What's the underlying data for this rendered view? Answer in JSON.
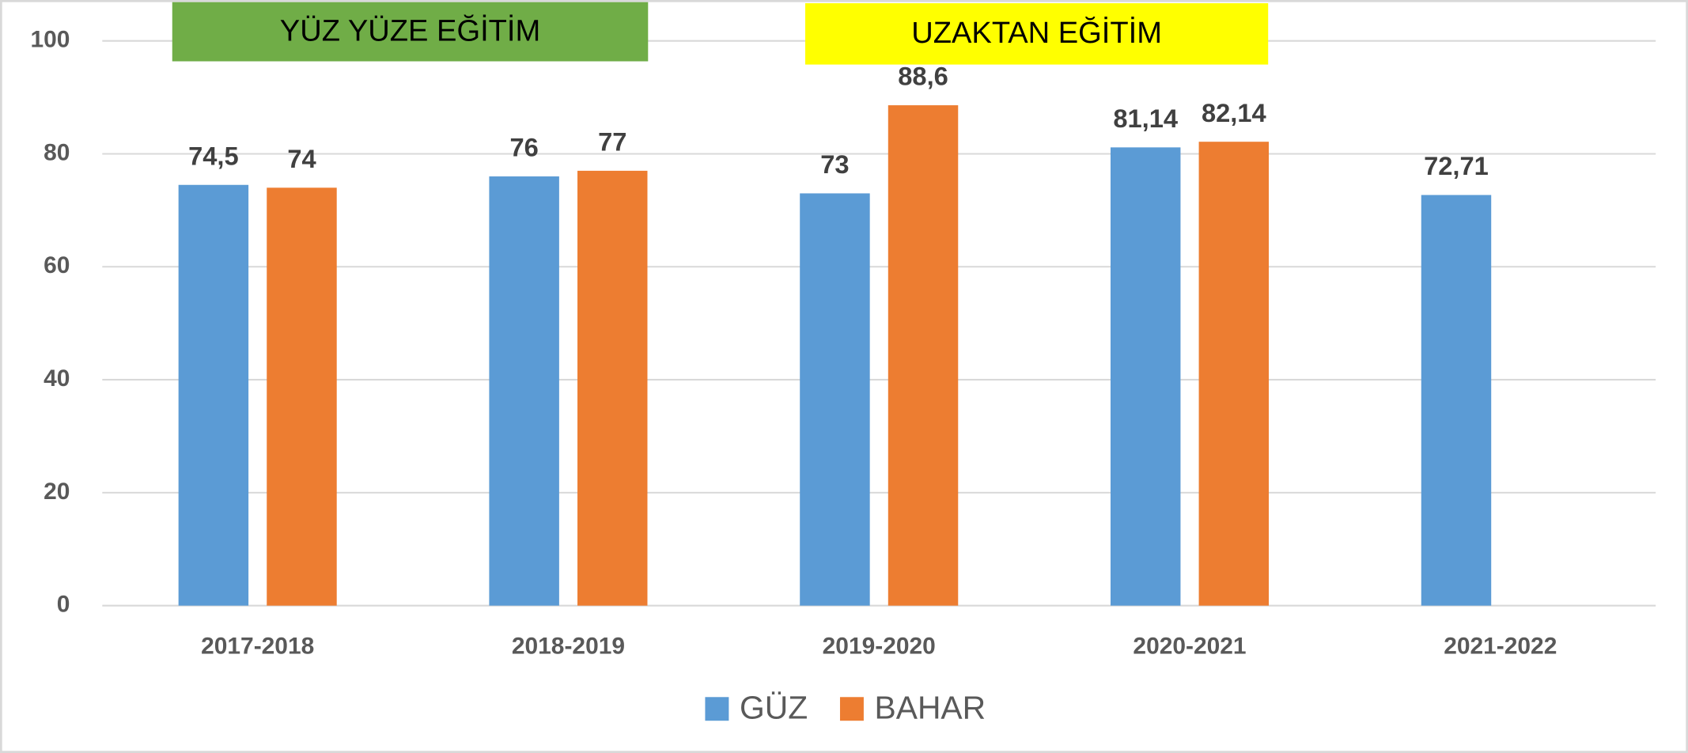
{
  "chart_data": {
    "type": "bar",
    "categories": [
      "2017-2018",
      "2018-2019",
      "2019-2020",
      "2020-2021",
      "2021-2022"
    ],
    "series": [
      {
        "name": "GÜZ",
        "color": "#5b9bd5",
        "values": [
          74.5,
          76,
          73,
          81.14,
          72.71
        ],
        "value_labels": [
          "74,5",
          "76",
          "73",
          "81,14",
          "72,71"
        ]
      },
      {
        "name": "BAHAR",
        "color": "#ed7d31",
        "values": [
          74,
          77,
          88.6,
          82.14,
          null
        ],
        "value_labels": [
          "74",
          "77",
          "88,6",
          "82,14",
          null
        ]
      }
    ],
    "annotations": [
      {
        "text": "YÜZ YÜZE EĞİTİM",
        "color": "#70ad47"
      },
      {
        "text": "UZAKTAN EĞİTİM",
        "color": "#ffff00"
      }
    ],
    "ylim": [
      0,
      100
    ],
    "yticks": [
      0,
      20,
      40,
      60,
      80,
      100
    ],
    "grid": true,
    "legend": "bottom"
  }
}
